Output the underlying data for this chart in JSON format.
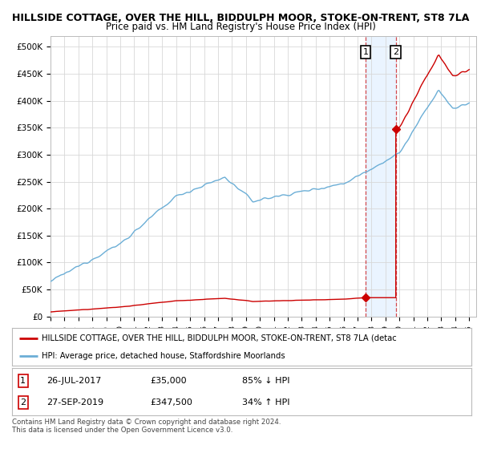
{
  "title": "HILLSIDE COTTAGE, OVER THE HILL, BIDDULPH MOOR, STOKE-ON-TRENT, ST8 7LA",
  "subtitle": "Price paid vs. HM Land Registry's House Price Index (HPI)",
  "xlim_start": 1995.0,
  "xlim_end": 2025.5,
  "ylim": [
    0,
    520000
  ],
  "yticks": [
    0,
    50000,
    100000,
    150000,
    200000,
    250000,
    300000,
    350000,
    400000,
    450000,
    500000
  ],
  "ytick_labels": [
    "£0",
    "£50K",
    "£100K",
    "£150K",
    "£200K",
    "£250K",
    "£300K",
    "£350K",
    "£400K",
    "£450K",
    "£500K"
  ],
  "hpi_color": "#6baed6",
  "price_color": "#cc0000",
  "sale1_year": 2017.57,
  "sale1_price": 35000,
  "sale2_year": 2019.74,
  "sale2_price": 347500,
  "highlight_color": "#ddeeff",
  "vline_color": "#cc0000",
  "legend_line1": "HILLSIDE COTTAGE, OVER THE HILL, BIDDULPH MOOR, STOKE-ON-TRENT, ST8 7LA (detac",
  "legend_line2": "HPI: Average price, detached house, Staffordshire Moorlands",
  "table_row1": [
    "1",
    "26-JUL-2017",
    "£35,000",
    "85% ↓ HPI"
  ],
  "table_row2": [
    "2",
    "27-SEP-2019",
    "£347,500",
    "34% ↑ HPI"
  ],
  "footnote": "Contains HM Land Registry data © Crown copyright and database right 2024.\nThis data is licensed under the Open Government Licence v3.0.",
  "bg_color": "#ffffff",
  "grid_color": "#d8d8d8"
}
